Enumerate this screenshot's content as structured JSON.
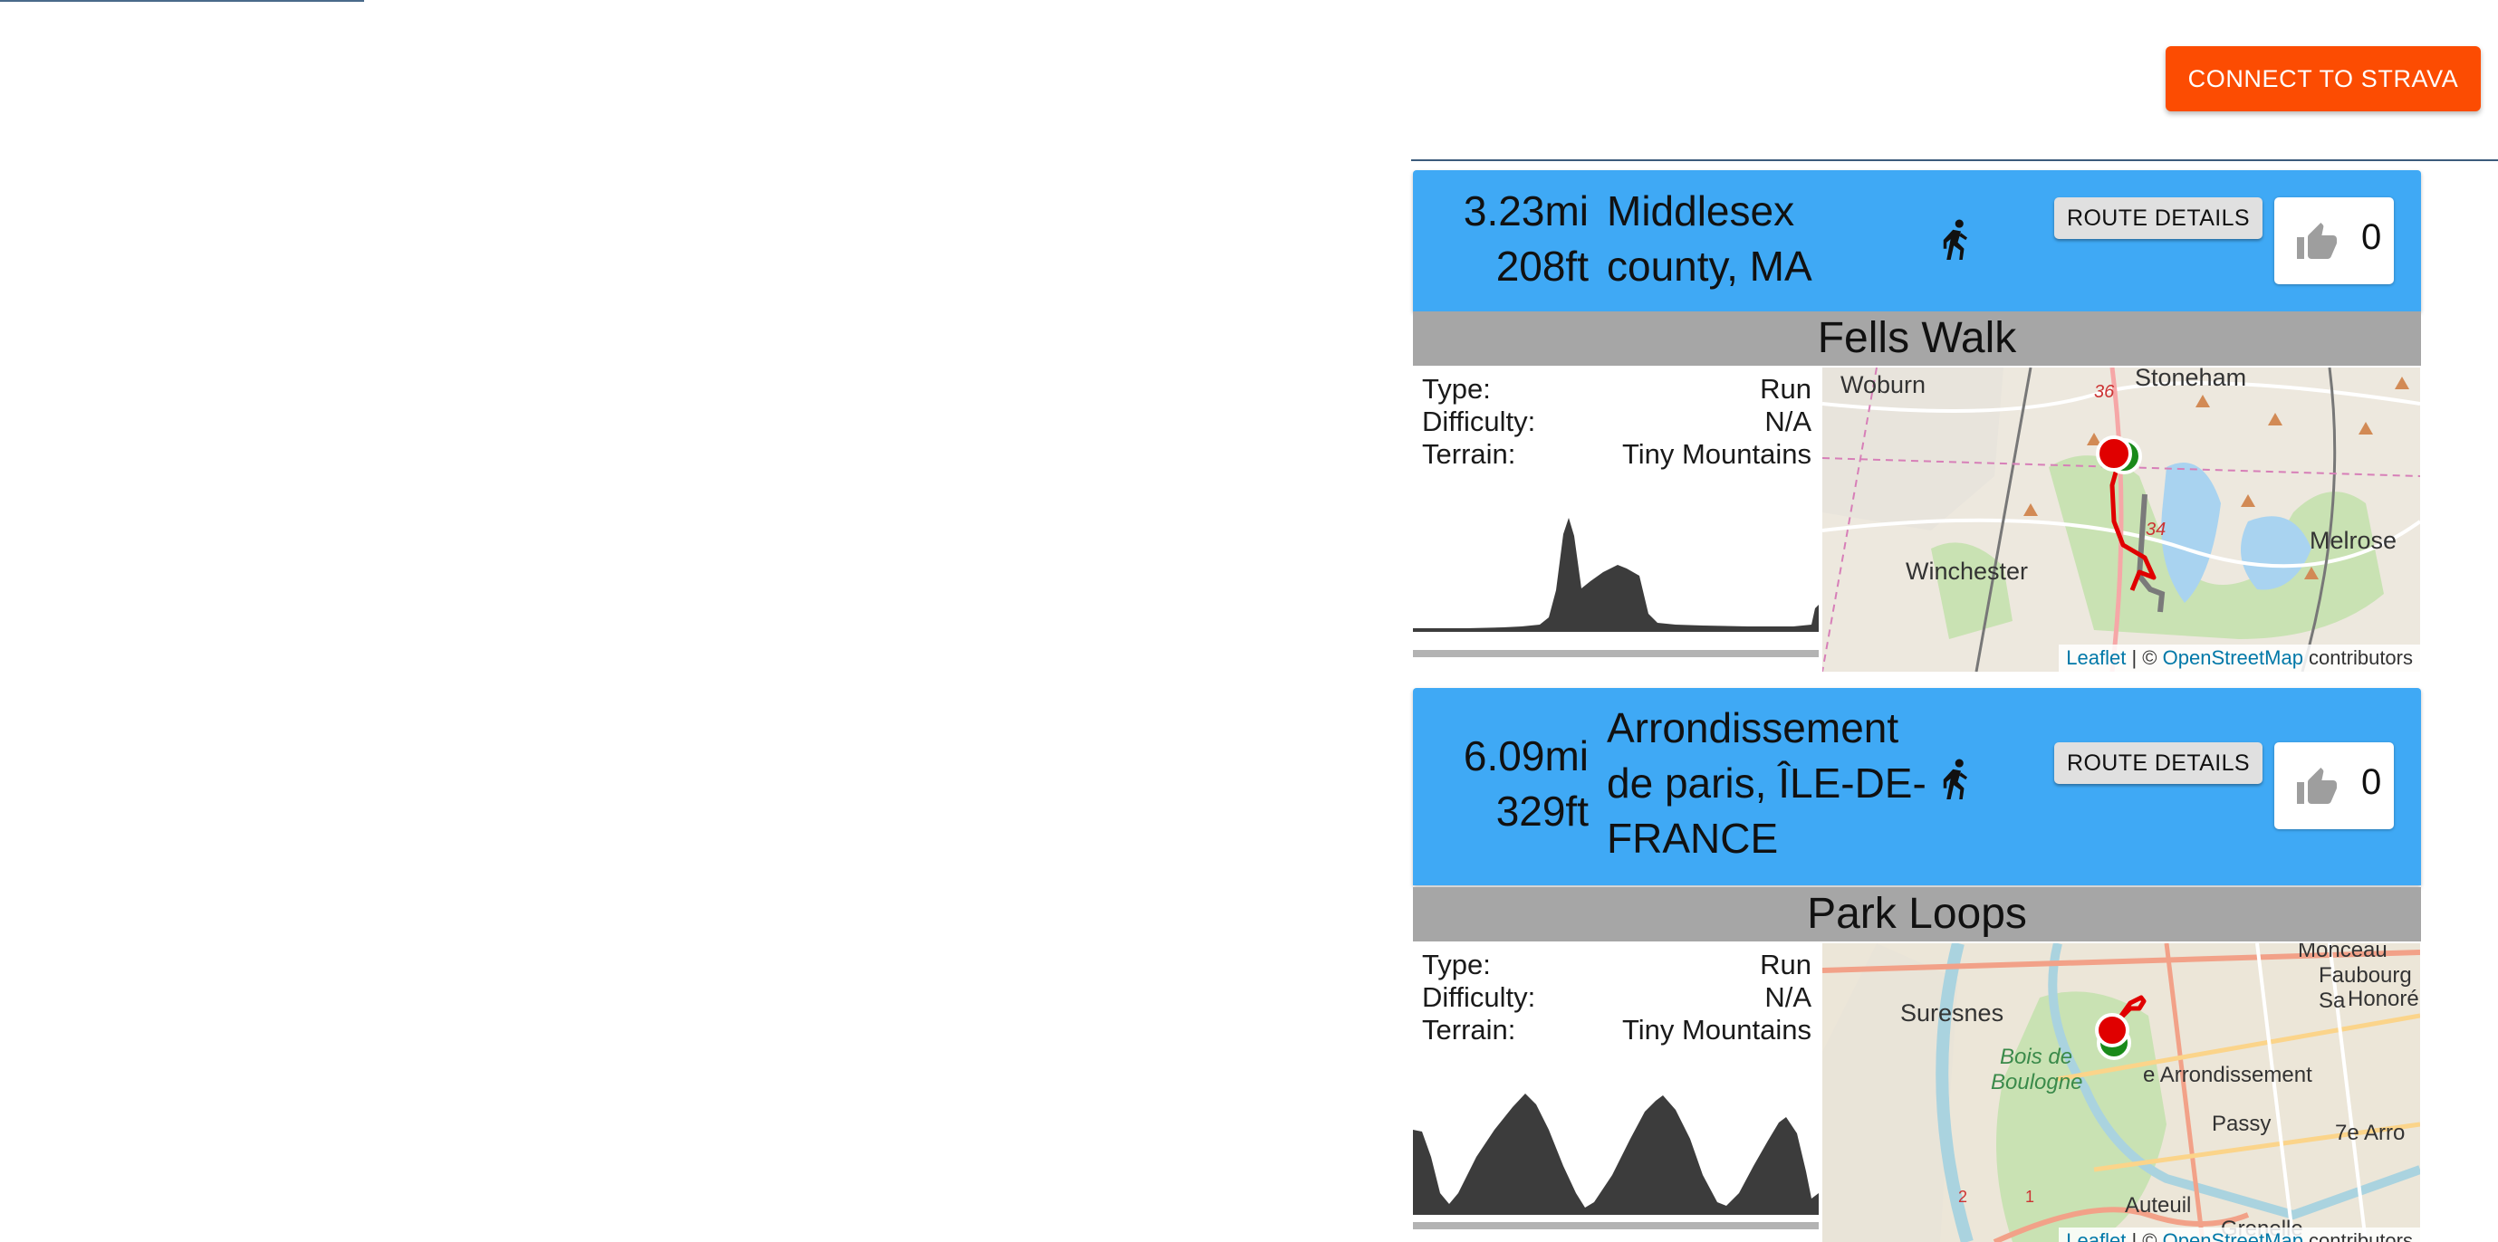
{
  "header": {
    "connect_label": "CONNECT TO STRAVA"
  },
  "colors": {
    "strava": "#fc4c02",
    "card_header": "#3fa9f5",
    "name_bar": "#a6a6a6",
    "route_line": "#e00000",
    "start_marker": "#e00000",
    "end_marker": "#1a8a1a"
  },
  "routes": [
    {
      "distance": "3.23mi",
      "elevation": "208ft",
      "location_lines": [
        "Middlesex",
        "county, MA"
      ],
      "activity_icon": "runner-icon",
      "details_label": "ROUTE DETAILS",
      "likes": "0",
      "name": "Fells Walk",
      "type_label": "Type:",
      "type_value": "Run",
      "difficulty_label": "Difficulty:",
      "difficulty_value": "N/A",
      "terrain_label": "Terrain:",
      "terrain_value": "Tiny Mountains",
      "map_places": [
        "Woburn",
        "Stoneham",
        "Winchester",
        "Melrose"
      ],
      "map_shields": [
        "36",
        "34"
      ],
      "attribution": {
        "leaflet": "Leaflet",
        "sep": " | © ",
        "osm": "OpenStreetMap",
        "tail": " contributors"
      }
    },
    {
      "distance": "6.09mi",
      "elevation": "329ft",
      "location_lines": [
        "Arrondissement",
        "de paris, ÎLE-DE-",
        "FRANCE"
      ],
      "activity_icon": "runner-icon",
      "details_label": "ROUTE DETAILS",
      "likes": "0",
      "name": "Park Loops",
      "type_label": "Type:",
      "type_value": "Run",
      "difficulty_label": "Difficulty:",
      "difficulty_value": "N/A",
      "terrain_label": "Terrain:",
      "terrain_value": "Tiny Mountains",
      "map_places": [
        "Monceau",
        "Faubourg Sa",
        "Honoré",
        "Suresnes",
        "Bois de",
        "Boulogne",
        "e Arrondissement",
        "Passy",
        "7e Arro",
        "Auteuil",
        "Grenelle"
      ],
      "map_shields": [
        "2",
        "1"
      ],
      "attribution": {
        "leaflet": "Leaflet",
        "sep": " | © ",
        "osm": "OpenStreetMap",
        "tail": " contributors"
      }
    }
  ]
}
